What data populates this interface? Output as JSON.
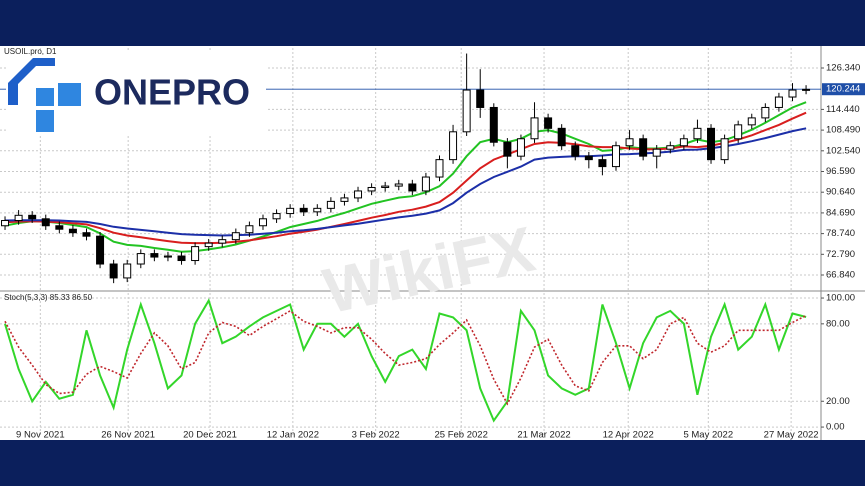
{
  "logo": {
    "text": "ONEPRO"
  },
  "watermark": "WikiFX",
  "chart_data": [
    {
      "type": "candlestick",
      "title": "USOIL.pro, D1",
      "xlim": [
        -0.37,
        60.1
      ],
      "ylim": [
        62.53,
        132.09
      ],
      "yticks": [
        {
          "value": 66.84,
          "label": "66.840"
        },
        {
          "value": 72.79,
          "label": "72.790"
        },
        {
          "value": 78.74,
          "label": "78.740"
        },
        {
          "value": 84.69,
          "label": "84.690"
        },
        {
          "value": 90.64,
          "label": "90.640"
        },
        {
          "value": 96.59,
          "label": "96.590"
        },
        {
          "value": 102.54,
          "label": "102.540"
        },
        {
          "value": 108.49,
          "label": "108.490"
        },
        {
          "value": 114.44,
          "label": "114.440"
        },
        {
          "value": 126.34,
          "label": "126.340"
        }
      ],
      "current_price": {
        "value": 120.244,
        "label": "120.244",
        "color": "#1f4fa8"
      },
      "grid": true,
      "up_color": "#ffffff",
      "down_color": "#000000",
      "open": [
        81,
        82.5,
        84,
        83,
        81,
        80,
        79,
        78,
        70,
        66,
        70,
        73,
        72,
        72.3,
        71,
        75,
        76,
        77,
        79,
        81,
        83,
        84.5,
        86,
        85,
        86,
        88,
        89,
        91,
        92,
        92.4,
        93,
        91,
        95,
        100,
        108,
        120,
        115,
        105,
        101,
        106,
        112,
        109,
        104,
        101,
        100,
        98,
        104,
        106,
        101,
        103,
        104,
        106,
        109,
        100,
        106,
        110,
        112,
        115,
        118,
        120
      ],
      "high": [
        83.7,
        85.5,
        85.2,
        84.2,
        82.2,
        81.2,
        80.2,
        79.2,
        71.2,
        71.2,
        74.2,
        74.2,
        73.5,
        73.5,
        76.2,
        77.2,
        78.2,
        80.2,
        82.2,
        84.2,
        85.7,
        87.2,
        87.2,
        87.2,
        89.2,
        90.2,
        92.2,
        93.2,
        93.6,
        94.2,
        94.2,
        96.2,
        101.2,
        110,
        130.5,
        126,
        116.2,
        106.2,
        107.2,
        116.5,
        113.2,
        110.2,
        105.2,
        102.2,
        101.2,
        105.2,
        108.5,
        107.2,
        104.2,
        105.2,
        107.2,
        111.5,
        110.2,
        107.2,
        111.2,
        113.2,
        116.2,
        119.2,
        122,
        121.4
      ],
      "low": [
        79.8,
        81.3,
        81.8,
        79.8,
        78.8,
        77.8,
        76.8,
        68.8,
        64.5,
        64.8,
        68.8,
        70.8,
        70.8,
        69.8,
        69.8,
        73.8,
        74.8,
        75.8,
        77.8,
        79.8,
        81.8,
        83.3,
        83.8,
        83.8,
        84.8,
        86.8,
        87.8,
        89.8,
        90.8,
        91.2,
        89.8,
        89.8,
        93.8,
        98.8,
        106.8,
        112,
        103.8,
        97.5,
        99.8,
        104.8,
        107.8,
        102.8,
        99.8,
        97.5,
        95.5,
        96.8,
        102.8,
        99.8,
        97.5,
        101.8,
        102.8,
        104.8,
        98.8,
        98.8,
        104.8,
        108.8,
        110.8,
        113.8,
        116.8,
        118.8
      ],
      "close": [
        82.5,
        84,
        83,
        81,
        80,
        79,
        78,
        70,
        66,
        70,
        73,
        72,
        72.3,
        71,
        75,
        76,
        77,
        79,
        81,
        83,
        84.5,
        86,
        85,
        86,
        88,
        89,
        91,
        92,
        92.4,
        93,
        91,
        95,
        100,
        108,
        120,
        115,
        105,
        101,
        106,
        112,
        109,
        104,
        101,
        100,
        98,
        104,
        106,
        101,
        103,
        104,
        106,
        109,
        100,
        106,
        110,
        112,
        115,
        118,
        120,
        120.2
      ],
      "series": [
        {
          "color": "#22c322",
          "values": [
            81,
            81.8,
            82.3,
            82.2,
            81.8,
            81.2,
            80.6,
            78.8,
            76.4,
            75.5,
            75.2,
            74.6,
            74.1,
            73.5,
            73.7,
            74.2,
            74.8,
            75.6,
            76.7,
            77.9,
            79.2,
            80.6,
            81.5,
            82.4,
            83.6,
            84.7,
            86,
            87.3,
            88.2,
            89.1,
            89.5,
            90.6,
            92.4,
            96,
            101,
            105,
            106,
            105,
            106,
            108,
            108.5,
            107.5,
            106,
            104.5,
            102.5,
            102.8,
            103.6,
            103.2,
            103.2,
            103.5,
            104.5,
            105.8,
            105,
            105.6,
            107,
            108.6,
            110.6,
            112.8,
            115,
            116.5
          ]
        },
        {
          "color": "#d81e1e",
          "values": [
            82,
            82.2,
            82.3,
            82.2,
            82,
            81.7,
            81.4,
            80.3,
            79,
            78.2,
            77.7,
            77.1,
            76.6,
            76.1,
            76,
            76,
            76.1,
            76.4,
            76.8,
            77.4,
            78,
            78.7,
            79.3,
            79.9,
            80.7,
            81.5,
            82.4,
            83.3,
            84.1,
            85,
            85.6,
            86.5,
            87.8,
            90.5,
            94,
            97.5,
            100,
            101.5,
            103,
            104.5,
            105,
            104.8,
            104.4,
            103.8,
            103.6,
            103.6,
            103.2,
            103,
            103,
            103.2,
            103.8,
            103.6,
            104,
            104.8,
            105.8,
            107,
            108.5,
            110,
            111.8,
            113.5
          ]
        },
        {
          "color": "#1c2fa8",
          "values": [
            82.5,
            82.6,
            82.6,
            82.6,
            82.5,
            82.3,
            82.1,
            81.5,
            80.7,
            80.2,
            79.8,
            79.4,
            79,
            78.6,
            78.4,
            78.3,
            78.2,
            78.3,
            78.4,
            78.7,
            79,
            79.4,
            79.7,
            80.1,
            80.6,
            81.1,
            81.6,
            82.2,
            82.8,
            83.4,
            83.9,
            84.5,
            85.4,
            87.5,
            90.5,
            93,
            95,
            96.5,
            98,
            100,
            100.6,
            100.8,
            101,
            101,
            101.2,
            101.5,
            101.6,
            101.8,
            102,
            102.3,
            102.8,
            102.9,
            103.3,
            103.8,
            104.5,
            105.3,
            106.2,
            107.2,
            108.2,
            109
          ]
        }
      ]
    },
    {
      "type": "line",
      "title": "Stoch(5,3,3) 85.33 86.50",
      "xlim": [
        -0.37,
        60.1
      ],
      "ylim": [
        -7.7,
        103.9
      ],
      "yticks": [
        {
          "value": 0,
          "label": "0.00"
        },
        {
          "value": 20,
          "label": "20.00"
        },
        {
          "value": 80,
          "label": "80.00"
        },
        {
          "value": 100,
          "label": "100.00"
        }
      ],
      "xticks": [
        {
          "value": 2.6,
          "label": "9 Nov 2021"
        },
        {
          "value": 9.07,
          "label": "26 Nov 2021"
        },
        {
          "value": 15.1,
          "label": "20 Dec 2021"
        },
        {
          "value": 21.2,
          "label": "12 Jan 2022"
        },
        {
          "value": 27.3,
          "label": "3 Feb 2022"
        },
        {
          "value": 33.6,
          "label": "25 Feb 2022"
        },
        {
          "value": 39.7,
          "label": "21 Mar 2022"
        },
        {
          "value": 45.9,
          "label": "12 Apr 2022"
        },
        {
          "value": 51.8,
          "label": "5 May 2022"
        },
        {
          "value": 57.9,
          "label": "27 May 2022"
        }
      ],
      "grid": true,
      "series": [
        {
          "color": "#33d62a",
          "values": [
            80,
            45,
            20,
            35,
            22,
            25,
            75,
            40,
            15,
            60,
            95,
            65,
            30,
            40,
            80,
            98,
            65,
            70,
            78,
            85,
            90,
            95,
            60,
            80,
            80,
            70,
            80,
            55,
            35,
            55,
            60,
            45,
            88,
            85,
            75,
            30,
            5,
            20,
            90,
            75,
            40,
            30,
            25,
            30,
            95,
            65,
            30,
            65,
            85,
            90,
            80,
            25,
            70,
            95,
            60,
            70,
            95,
            60,
            88,
            85.33
          ]
        },
        {
          "color": "#c0272d",
          "dashed": true,
          "values": [
            82,
            62,
            48,
            33,
            26,
            27,
            41,
            47,
            43,
            38,
            57,
            73,
            63,
            45,
            50,
            73,
            81,
            78,
            71,
            78,
            84,
            90,
            82,
            78,
            73,
            77,
            77,
            68,
            57,
            48,
            50,
            53,
            64,
            73,
            83,
            63,
            37,
            18,
            38,
            62,
            68,
            48,
            32,
            28,
            50,
            63,
            63,
            53,
            60,
            80,
            85,
            65,
            58,
            63,
            75,
            75,
            75,
            75,
            81,
            86.5
          ]
        }
      ]
    }
  ]
}
